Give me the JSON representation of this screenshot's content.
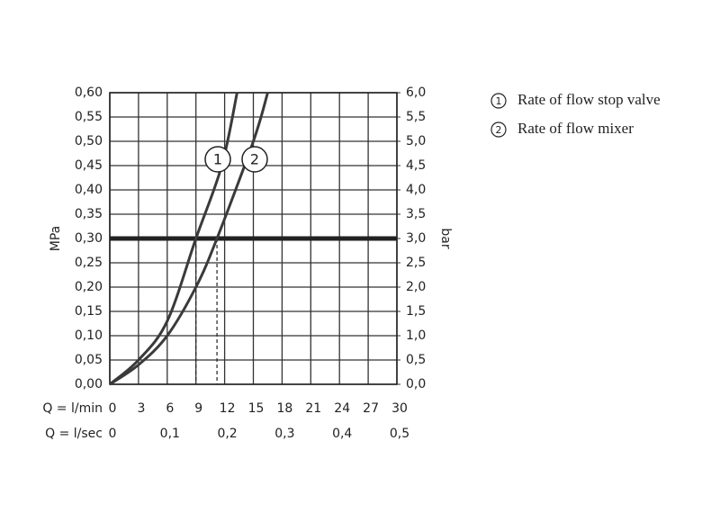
{
  "chart_data": {
    "type": "line",
    "y_label": "MPa",
    "y2_label": "bar",
    "x_label": "Q = l/min",
    "x2_label": "Q = l/sec",
    "xlim": [
      0,
      30
    ],
    "xticks": [
      0,
      3,
      6,
      9,
      12,
      15,
      18,
      21,
      24,
      27,
      30
    ],
    "x2lim": [
      0,
      0.5
    ],
    "x2ticks": [
      0,
      {
        "value": 0.1,
        "label": "0,1"
      },
      {
        "value": 0.2,
        "label": "0,2"
      },
      {
        "value": 0.3,
        "label": "0,3"
      },
      {
        "value": 0.4,
        "label": "0,4"
      },
      {
        "value": 0.5,
        "label": "0,5"
      }
    ],
    "ylim": [
      0,
      0.6
    ],
    "yticks": [
      {
        "value": 0,
        "label": "0,00"
      },
      {
        "value": 0.05,
        "label": "0,05"
      },
      {
        "value": 0.1,
        "label": "0,10"
      },
      {
        "value": 0.15,
        "label": "0,15"
      },
      {
        "value": 0.2,
        "label": "0,20"
      },
      {
        "value": 0.25,
        "label": "0,25"
      },
      {
        "value": 0.3,
        "label": "0,30"
      },
      {
        "value": 0.35,
        "label": "0,35"
      },
      {
        "value": 0.4,
        "label": "0,40"
      },
      {
        "value": 0.45,
        "label": "0,45"
      },
      {
        "value": 0.5,
        "label": "0,50"
      },
      {
        "value": 0.55,
        "label": "0,55"
      },
      {
        "value": 0.6,
        "label": "0,60"
      }
    ],
    "y2lim": [
      0,
      6
    ],
    "y2ticks": [
      {
        "value": 0,
        "label": "0,0"
      },
      {
        "value": 0.5,
        "label": "0,5"
      },
      {
        "value": 1,
        "label": "1,0"
      },
      {
        "value": 1.5,
        "label": "1,5"
      },
      {
        "value": 2,
        "label": "2,0"
      },
      {
        "value": 2.5,
        "label": "2,5"
      },
      {
        "value": 3,
        "label": "3,0"
      },
      {
        "value": 3.5,
        "label": "3,5"
      },
      {
        "value": 4,
        "label": "4,0"
      },
      {
        "value": 4.5,
        "label": "4,5"
      },
      {
        "value": 5,
        "label": "5,0"
      },
      {
        "value": 5.5,
        "label": "5,5"
      },
      {
        "value": 6,
        "label": "6,0"
      }
    ],
    "grid": true,
    "reference_y": 0.3,
    "reference_x": [
      9,
      11.2
    ],
    "series": [
      {
        "name": "Rate of flow stop valve",
        "marker_label": "1",
        "color": "#3a3a3a",
        "x": [
          0,
          3,
          6,
          9,
          11.7,
          13.3
        ],
        "values": [
          0,
          0.05,
          0.13,
          0.3,
          0.45,
          0.6
        ]
      },
      {
        "name": "Rate of flow mixer",
        "marker_label": "2",
        "color": "#3a3a3a",
        "x": [
          0,
          3,
          6,
          9,
          11.2,
          15,
          16.5
        ],
        "values": [
          0,
          0.04,
          0.1,
          0.2,
          0.3,
          0.5,
          0.6
        ]
      }
    ]
  }
}
